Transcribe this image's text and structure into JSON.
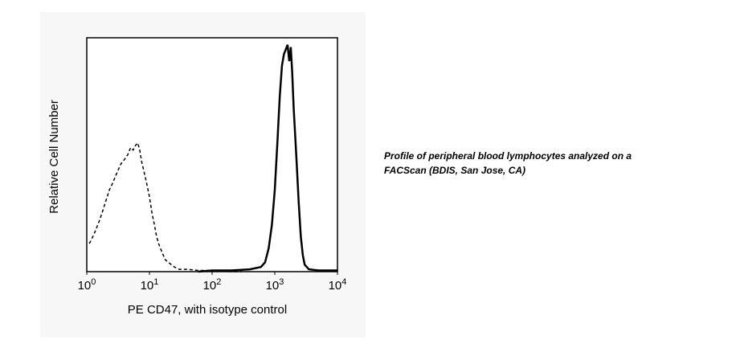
{
  "chart_data": {
    "type": "line",
    "xlabel": "PE CD47, with isotype control",
    "ylabel": "Relative Cell Number",
    "xscale": "log",
    "xlim": [
      1,
      10000
    ],
    "ylim": [
      0,
      100
    ],
    "xticks": [
      {
        "value": 1,
        "label": "10",
        "exponent": "0"
      },
      {
        "value": 10,
        "label": "10",
        "exponent": "1"
      },
      {
        "value": 100,
        "label": "10",
        "exponent": "2"
      },
      {
        "value": 1000,
        "label": "10",
        "exponent": "3"
      },
      {
        "value": 10000,
        "label": "10",
        "exponent": "4"
      }
    ],
    "series": [
      {
        "color": "#000000",
        "dashed": true,
        "x": [
          1.1,
          1.2,
          1.3,
          1.4,
          1.6,
          1.8,
          2.0,
          2.3,
          2.6,
          3.0,
          3.5,
          4.0,
          4.5,
          5.0,
          5.5,
          6.0,
          6.5,
          7.0,
          7.5,
          8.0,
          9.0,
          10,
          11,
          12,
          13,
          14,
          16,
          18,
          20,
          25,
          30,
          40,
          60,
          100,
          200,
          300
        ],
        "values": [
          12,
          14,
          16,
          18,
          22,
          26,
          30,
          35,
          38,
          42,
          46,
          48,
          50,
          53,
          52,
          54,
          55,
          52,
          47,
          44,
          38,
          32,
          25,
          20,
          15,
          12,
          8,
          5,
          4,
          2,
          1,
          1,
          0.5,
          0.5,
          0,
          0
        ]
      },
      {
        "color": "#000000",
        "dashed": false,
        "x": [
          60,
          100,
          200,
          400,
          600,
          700,
          800,
          900,
          1000,
          1100,
          1200,
          1300,
          1400,
          1500,
          1600,
          1700,
          1800,
          1900,
          2000,
          2200,
          2400,
          2600,
          2800,
          3000,
          3500,
          5000,
          10000
        ],
        "values": [
          0,
          0.5,
          0.5,
          1,
          2,
          4,
          10,
          20,
          35,
          55,
          75,
          88,
          93,
          95,
          97,
          90,
          96,
          85,
          70,
          50,
          30,
          15,
          7,
          3,
          1,
          0.5,
          0.5
        ]
      }
    ],
    "caption": "Profile of peripheral blood lymphocytes analyzed on a FACScan (BDIS, San Jose, CA)"
  }
}
